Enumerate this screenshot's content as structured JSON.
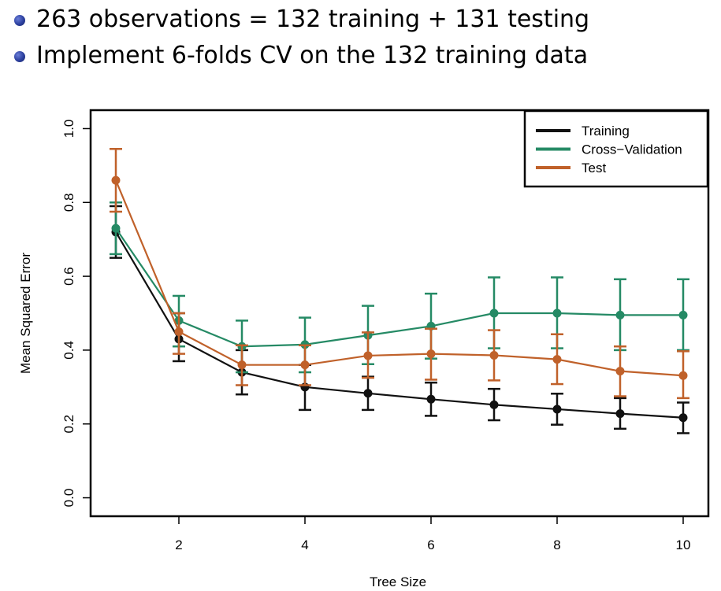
{
  "bullets": [
    "263 observations = 132 training + 131 testing",
    "Implement 6-folds CV on the 132 training data"
  ],
  "chart_data": {
    "type": "line",
    "xlabel": "Tree Size",
    "ylabel": "Mean Squared Error",
    "xlim": [
      0.6,
      10.4
    ],
    "ylim": [
      -0.05,
      1.05
    ],
    "xticks": [
      2,
      4,
      6,
      8,
      10
    ],
    "yticks": [
      0.0,
      0.2,
      0.4,
      0.6,
      0.8,
      1.0
    ],
    "grid": false,
    "legend_position": "top-right",
    "x": [
      1,
      2,
      3,
      4,
      5,
      6,
      7,
      8,
      9,
      10
    ],
    "series": [
      {
        "name": "Training",
        "color": "#111111",
        "values": [
          0.72,
          0.43,
          0.34,
          0.3,
          0.283,
          0.267,
          0.252,
          0.24,
          0.228,
          0.217
        ],
        "lower": [
          0.65,
          0.37,
          0.28,
          0.238,
          0.238,
          0.222,
          0.21,
          0.198,
          0.187,
          0.175
        ],
        "upper": [
          0.79,
          0.5,
          0.4,
          0.36,
          0.328,
          0.312,
          0.295,
          0.282,
          0.27,
          0.258
        ]
      },
      {
        "name": "Cross−Validation",
        "color": "#258a65",
        "values": [
          0.73,
          0.48,
          0.41,
          0.415,
          0.44,
          0.465,
          0.5,
          0.5,
          0.495,
          0.495
        ],
        "lower": [
          0.66,
          0.41,
          0.34,
          0.34,
          0.362,
          0.377,
          0.405,
          0.405,
          0.4,
          0.4
        ],
        "upper": [
          0.8,
          0.547,
          0.48,
          0.488,
          0.52,
          0.553,
          0.597,
          0.597,
          0.592,
          0.592
        ]
      },
      {
        "name": "Test",
        "color": "#c0612a",
        "values": [
          0.86,
          0.45,
          0.36,
          0.36,
          0.385,
          0.39,
          0.386,
          0.375,
          0.343,
          0.331
        ],
        "lower": [
          0.775,
          0.39,
          0.305,
          0.305,
          0.325,
          0.32,
          0.318,
          0.308,
          0.275,
          0.27
        ],
        "upper": [
          0.945,
          0.5,
          0.413,
          0.413,
          0.448,
          0.458,
          0.454,
          0.443,
          0.41,
          0.397
        ]
      }
    ]
  }
}
